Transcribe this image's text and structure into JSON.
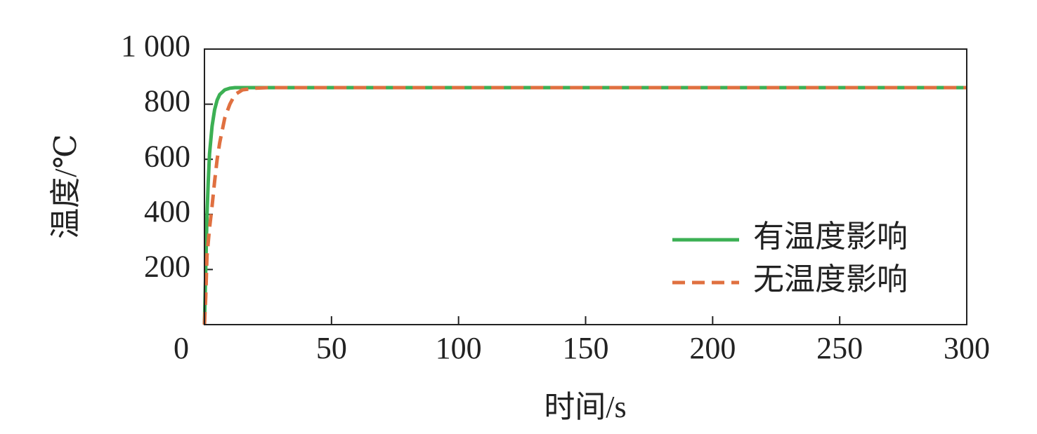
{
  "chart_data": {
    "type": "line",
    "xlabel": "时间/s",
    "ylabel": "温度/℃",
    "x": [
      0,
      0.5,
      1,
      1.5,
      2,
      3,
      4,
      5,
      6,
      8,
      10,
      12,
      15,
      20,
      25,
      300
    ],
    "series": [
      {
        "name": "有温度影响",
        "color": "#3cb054",
        "dash": false,
        "values": [
          0,
          200,
          400,
          520,
          620,
          720,
          780,
          815,
          835,
          852,
          858,
          860,
          860,
          860,
          860,
          860
        ]
      },
      {
        "name": "无温度影响",
        "color": "#e07040",
        "dash": true,
        "values": [
          0,
          100,
          250,
          300,
          350,
          430,
          520,
          600,
          660,
          750,
          800,
          835,
          852,
          858,
          860,
          860
        ]
      }
    ],
    "xlim": [
      0,
      300
    ],
    "xticks": [
      0,
      50,
      100,
      150,
      200,
      250,
      300
    ],
    "ylim": [
      0,
      1000
    ],
    "yticks": [
      200,
      400,
      600,
      800,
      {
        "value": 1000,
        "label": "1 000"
      }
    ],
    "legend": "lower right",
    "grid": false
  }
}
